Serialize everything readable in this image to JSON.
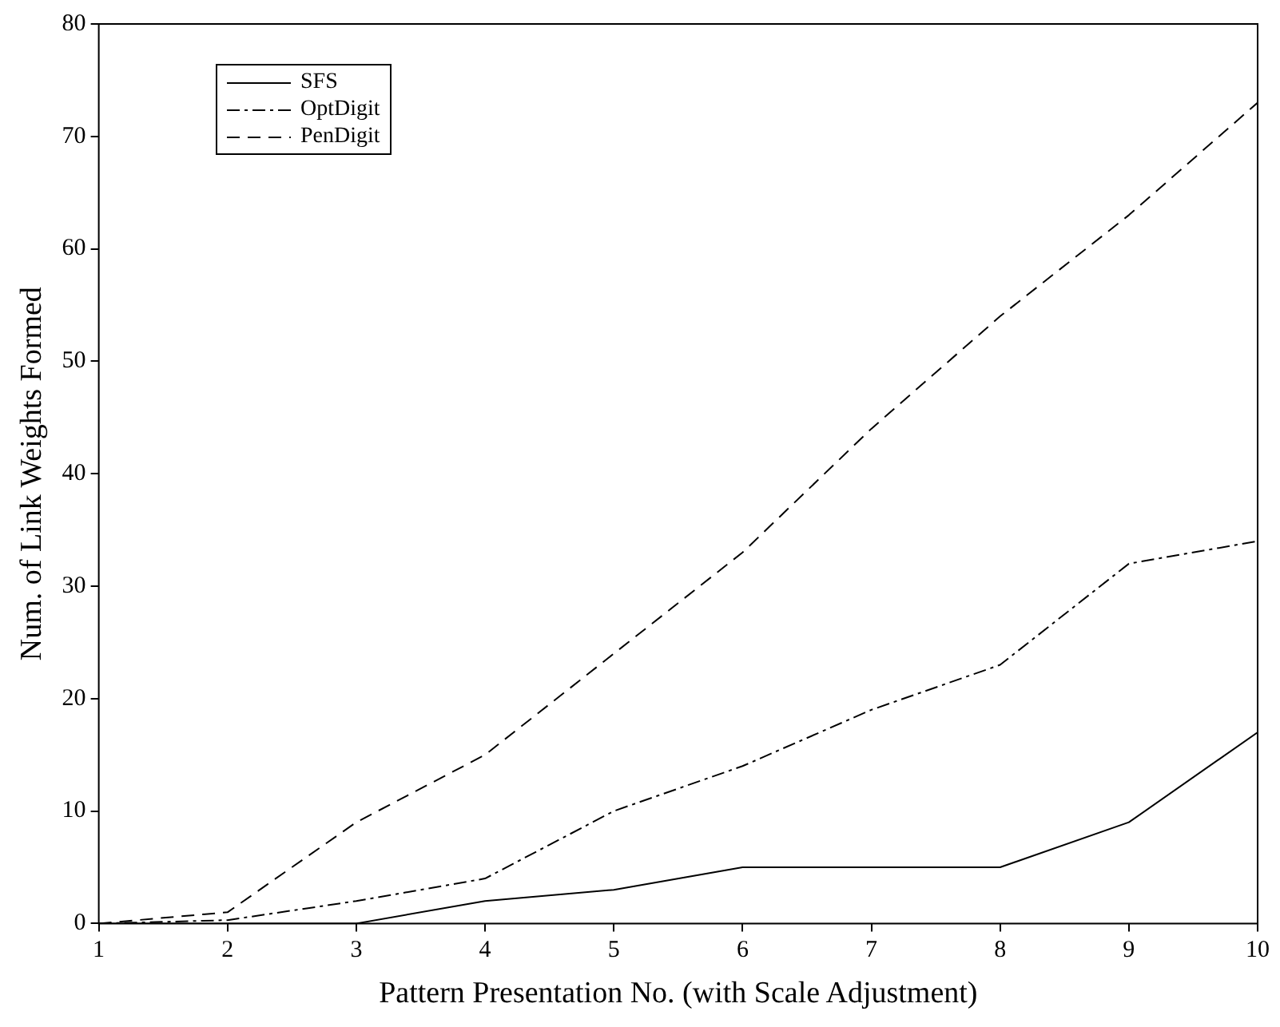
{
  "chart_data": {
    "type": "line",
    "xlabel": "Pattern Presentation No. (with Scale Adjustment)",
    "ylabel": "Num. of Link Weights Formed",
    "x": [
      1,
      2,
      3,
      4,
      5,
      6,
      7,
      8,
      9,
      10
    ],
    "series": [
      {
        "name": "SFS",
        "color": "#000000",
        "line_style": "solid",
        "values": [
          0,
          0,
          0,
          2,
          3,
          5,
          5,
          5,
          9,
          17
        ]
      },
      {
        "name": "OptDigit",
        "color": "#000000",
        "line_style": "dashdot",
        "values": [
          0,
          0.3,
          2,
          4,
          10,
          14,
          19,
          23,
          32,
          34
        ]
      },
      {
        "name": "PenDigit",
        "color": "#000000",
        "line_style": "dashed",
        "values": [
          0,
          1,
          9,
          15,
          24,
          33,
          44,
          54,
          63,
          73
        ]
      }
    ],
    "xlim": [
      1,
      10
    ],
    "xticks": [
      1,
      2,
      3,
      4,
      5,
      6,
      7,
      8,
      9,
      10
    ],
    "ylim": [
      0,
      80
    ],
    "yticks": [
      0,
      10,
      20,
      30,
      40,
      50,
      60,
      70,
      80
    ],
    "grid": false,
    "legend": "top left",
    "marker": "none"
  }
}
